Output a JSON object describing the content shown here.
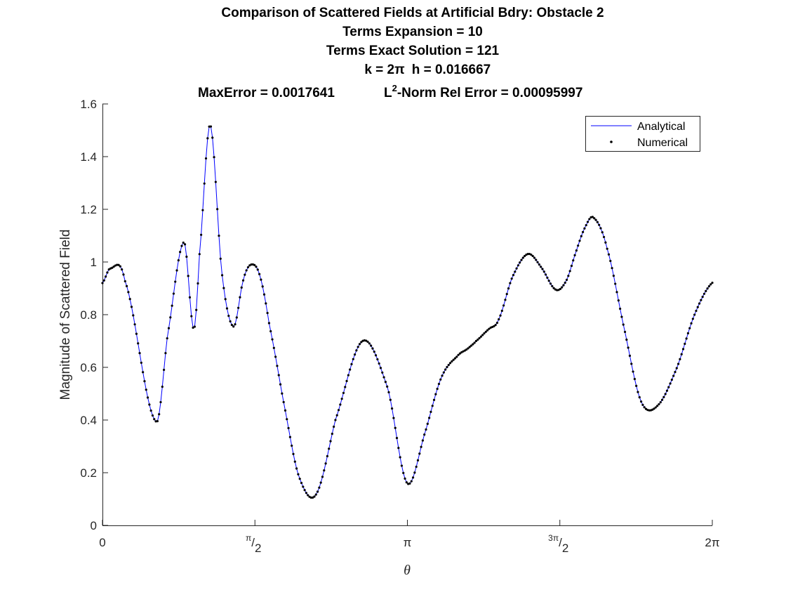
{
  "chart_data": {
    "type": "line",
    "title_lines": [
      "Comparison of Scattered Fields at Artificial Bdry: Obstacle 2",
      "Terms Expansion = 10",
      "Terms Exact Solution = 121"
    ],
    "params_line": {
      "k_label": "k = 2π",
      "h_label": "h = 0.016667"
    },
    "error_line": {
      "max_error": "MaxError = 0.0017641",
      "l2_prefix": "L",
      "l2_sup": "2",
      "l2_rest": "-Norm Rel Error = 0.00095997"
    },
    "xlabel": "θ",
    "ylabel": "Magnitude of Scattered Field",
    "xlim": [
      0,
      6.283185307
    ],
    "ylim": [
      0,
      1.6
    ],
    "yticks": [
      0,
      0.2,
      0.4,
      0.6,
      0.8,
      1,
      1.2,
      1.4,
      1.6
    ],
    "ytick_labels": [
      "0",
      "0.2",
      "0.4",
      "0.6",
      "0.8",
      "1",
      "1.2",
      "1.4",
      "1.6"
    ],
    "xticks": [
      0,
      1.570796,
      3.141593,
      4.712389,
      6.283185
    ],
    "xtick_labels": [
      {
        "main": "0"
      },
      {
        "num": "π",
        "den": "2"
      },
      {
        "main": "π"
      },
      {
        "num": "3π",
        "den": "2"
      },
      {
        "main": "2π"
      }
    ],
    "legend": {
      "location": "top-right",
      "entries": [
        "Analytical",
        "Numerical"
      ]
    },
    "series": [
      {
        "name": "Analytical",
        "style": "line",
        "color": "#0000ff"
      },
      {
        "name": "Numerical",
        "style": "markers",
        "color": "#000000"
      }
    ],
    "num_points": 378,
    "x": [
      0.0,
      0.0785,
      0.23,
      0.55,
      0.67,
      0.84,
      0.94,
      1.0,
      1.11,
      1.23,
      1.35,
      1.45,
      1.53,
      1.62,
      1.72,
      1.86,
      2.02,
      2.2,
      2.4,
      2.68,
      2.94,
      3.14,
      3.33,
      3.49,
      3.65,
      3.76,
      3.85,
      3.98,
      4.08,
      4.22,
      4.38,
      4.52,
      4.67,
      4.78,
      4.88,
      4.97,
      5.06,
      5.2,
      5.38,
      5.55,
      5.72,
      5.92,
      6.1,
      6.28
    ],
    "y": [
      0.92,
      0.975,
      0.93,
      0.395,
      0.72,
      1.075,
      0.745,
      1.03,
      1.52,
      0.96,
      0.755,
      0.93,
      0.99,
      0.95,
      0.76,
      0.48,
      0.19,
      0.117,
      0.4,
      0.7,
      0.52,
      0.16,
      0.36,
      0.56,
      0.64,
      0.67,
      0.7,
      0.745,
      0.78,
      0.94,
      1.03,
      0.98,
      0.895,
      0.93,
      1.04,
      1.13,
      1.168,
      1.05,
      0.74,
      0.47,
      0.455,
      0.6,
      0.8,
      0.92
    ]
  }
}
